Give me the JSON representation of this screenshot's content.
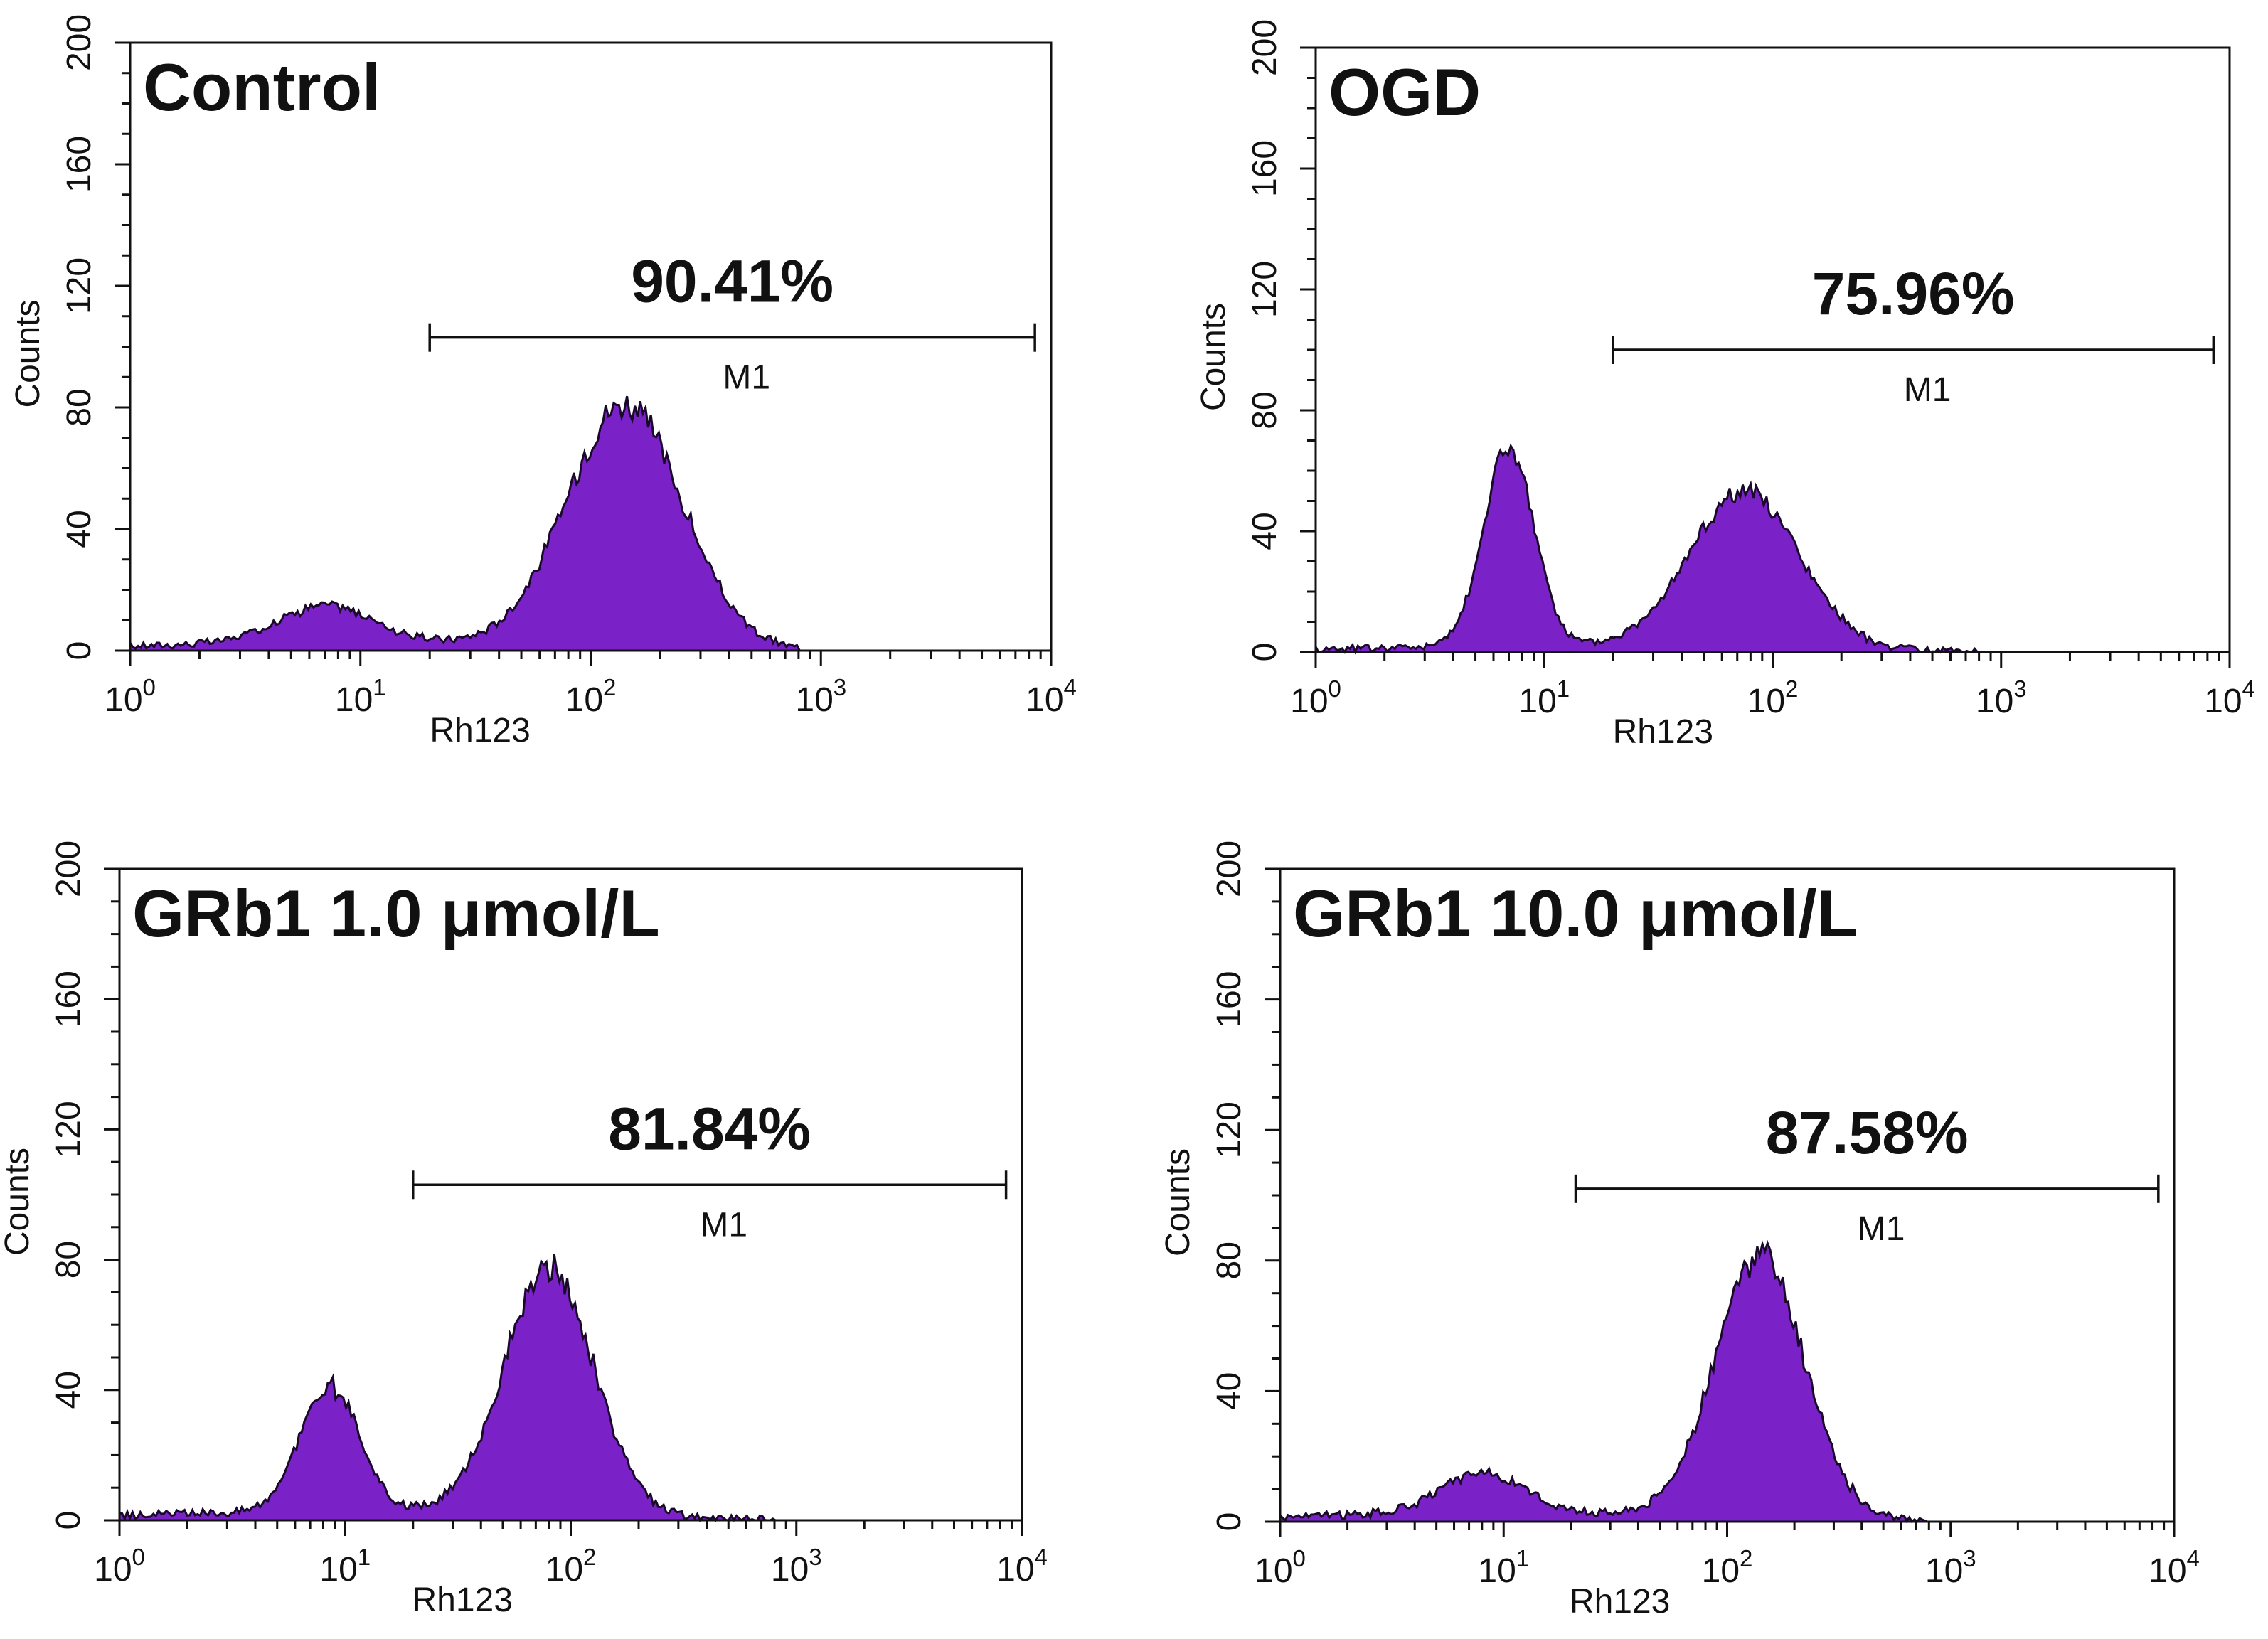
{
  "colors": {
    "histogram_fill": "#7a22c8",
    "axis": "#111111",
    "background": "#ffffff"
  },
  "chart_data": [
    {
      "type": "area",
      "title": "Control",
      "xlabel": "Rh123",
      "ylabel": "Counts",
      "xscale": "log",
      "xlim": [
        1,
        10000
      ],
      "ylim": [
        0,
        200
      ],
      "x_ticks": [
        {
          "base": "10",
          "exp": "0"
        },
        {
          "base": "10",
          "exp": "1"
        },
        {
          "base": "10",
          "exp": "2"
        },
        {
          "base": "10",
          "exp": "3"
        },
        {
          "base": "10",
          "exp": "4"
        }
      ],
      "y_ticks": [
        "0",
        "40",
        "80",
        "120",
        "160",
        "200"
      ],
      "marker": {
        "name": "M1",
        "percent": "90.41%",
        "x_range": [
          20,
          8500
        ]
      },
      "peaks": [
        {
          "center": 7,
          "height": 12,
          "width_decades": 0.2
        },
        {
          "center": 140,
          "height": 80,
          "width_decades": 0.25
        }
      ],
      "baseline": 3
    },
    {
      "type": "area",
      "title": "OGD",
      "xlabel": "Rh123",
      "ylabel": "Counts",
      "xscale": "log",
      "xlim": [
        1,
        10000
      ],
      "ylim": [
        0,
        200
      ],
      "x_ticks": [
        {
          "base": "10",
          "exp": "0"
        },
        {
          "base": "10",
          "exp": "1"
        },
        {
          "base": "10",
          "exp": "2"
        },
        {
          "base": "10",
          "exp": "3"
        },
        {
          "base": "10",
          "exp": "4"
        }
      ],
      "y_ticks": [
        "0",
        "40",
        "80",
        "120",
        "160",
        "200"
      ],
      "marker": {
        "name": "M1",
        "percent": "75.96%",
        "x_range": [
          20,
          8500
        ]
      },
      "peaks": [
        {
          "center": 7,
          "height": 66,
          "width_decades": 0.11
        },
        {
          "center": 75,
          "height": 52,
          "width_decades": 0.24
        }
      ],
      "baseline": 2
    },
    {
      "type": "area",
      "title": "GRb1 1.0 μmol/L",
      "xlabel": "Rh123",
      "ylabel": "Counts",
      "xscale": "log",
      "xlim": [
        1,
        10000
      ],
      "ylim": [
        0,
        200
      ],
      "x_ticks": [
        {
          "base": "10",
          "exp": "0"
        },
        {
          "base": "10",
          "exp": "1"
        },
        {
          "base": "10",
          "exp": "2"
        },
        {
          "base": "10",
          "exp": "3"
        },
        {
          "base": "10",
          "exp": "4"
        }
      ],
      "y_ticks": [
        "0",
        "40",
        "80",
        "120",
        "160",
        "200"
      ],
      "marker": {
        "name": "M1",
        "percent": "81.84%",
        "x_range": [
          20,
          8500
        ]
      },
      "peaks": [
        {
          "center": 8.5,
          "height": 38,
          "width_decades": 0.13
        },
        {
          "center": 80,
          "height": 75,
          "width_decades": 0.2
        }
      ],
      "baseline": 3
    },
    {
      "type": "area",
      "title": "GRb1 10.0 μmol/L",
      "xlabel": "Rh123",
      "ylabel": "Counts",
      "xscale": "log",
      "xlim": [
        1,
        10000
      ],
      "ylim": [
        0,
        200
      ],
      "x_ticks": [
        {
          "base": "10",
          "exp": "0"
        },
        {
          "base": "10",
          "exp": "1"
        },
        {
          "base": "10",
          "exp": "2"
        },
        {
          "base": "10",
          "exp": "3"
        },
        {
          "base": "10",
          "exp": "4"
        }
      ],
      "y_ticks": [
        "0",
        "40",
        "80",
        "120",
        "160",
        "200"
      ],
      "marker": {
        "name": "M1",
        "percent": "87.58%",
        "x_range": [
          21,
          8500
        ]
      },
      "peaks": [
        {
          "center": 8,
          "height": 12,
          "width_decades": 0.18
        },
        {
          "center": 140,
          "height": 80,
          "width_decades": 0.2
        }
      ],
      "baseline": 3
    }
  ]
}
